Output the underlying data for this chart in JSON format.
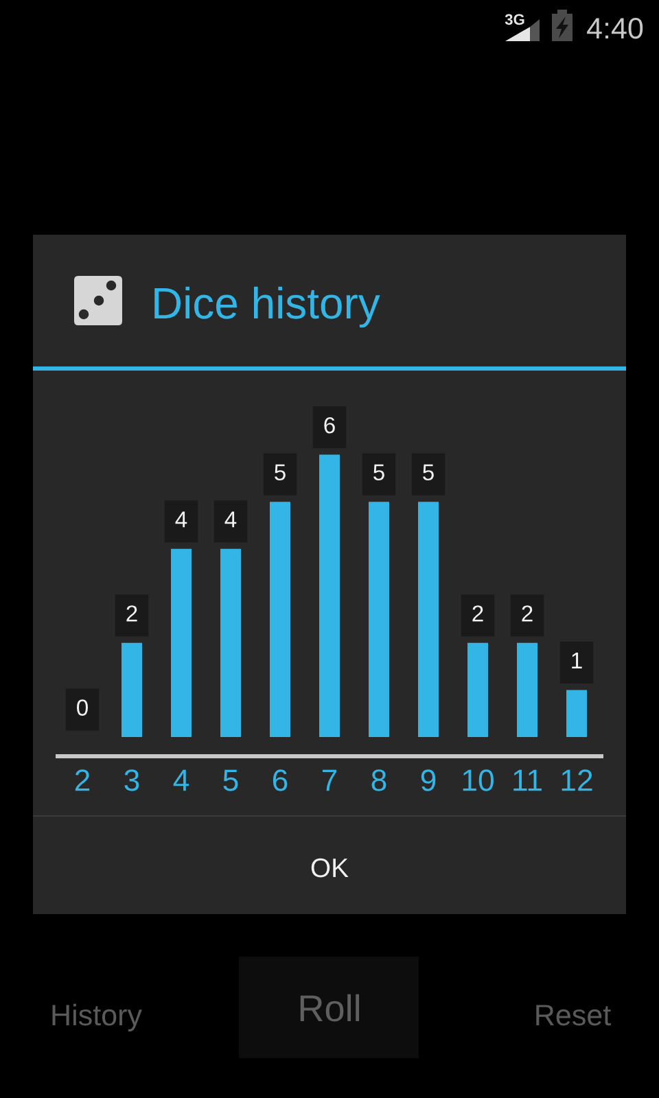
{
  "chart_data": {
    "type": "bar",
    "title": "Dice history",
    "categories": [
      "2",
      "3",
      "4",
      "5",
      "6",
      "7",
      "8",
      "9",
      "10",
      "11",
      "12"
    ],
    "values": [
      0,
      2,
      4,
      4,
      5,
      6,
      5,
      5,
      2,
      2,
      1
    ],
    "color": "#33b5e5",
    "data_labels": true,
    "ylim": [
      0,
      7
    ],
    "tick_labels": "x",
    "annotations": [
      "3G",
      "4:40",
      "OK",
      "History",
      "Roll",
      "Reset"
    ]
  }
}
